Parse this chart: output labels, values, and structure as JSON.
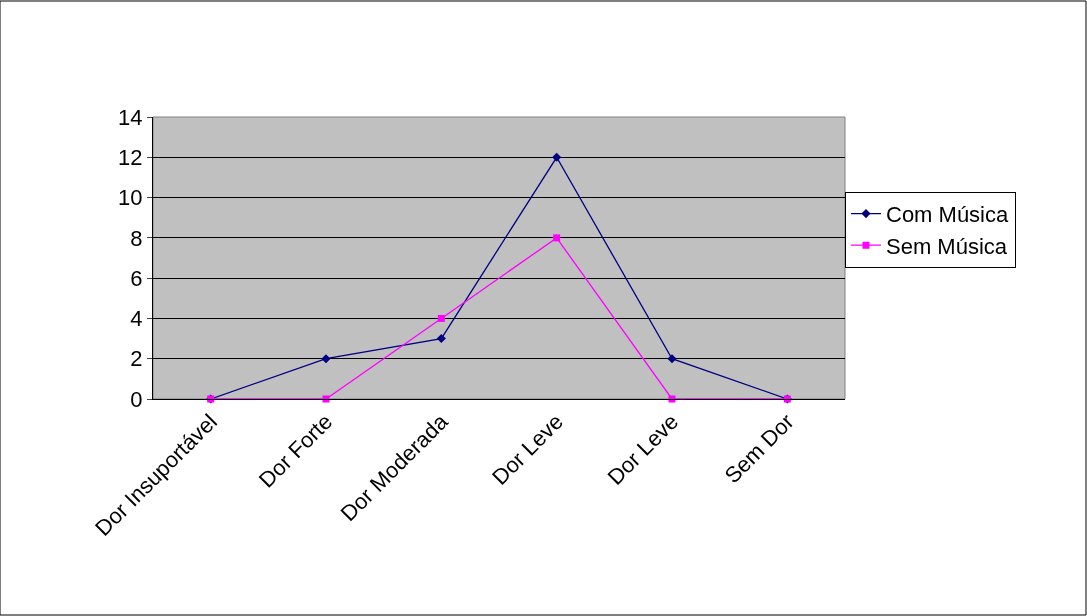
{
  "chart_data": {
    "type": "line",
    "categories": [
      "Dor Insuportável",
      "Dor Forte",
      "Dor Moderada",
      "Dor Leve",
      "Dor Leve",
      "Sem Dor"
    ],
    "series": [
      {
        "name": "Com Música",
        "color": "#000080",
        "marker": "diamond",
        "values": [
          0,
          2,
          3,
          12,
          2,
          0
        ]
      },
      {
        "name": "Sem Música",
        "color": "#ff00ff",
        "marker": "square",
        "values": [
          0,
          0,
          4,
          8,
          0,
          0
        ]
      }
    ],
    "ylim": [
      0,
      14
    ],
    "yticks": [
      0,
      2,
      4,
      6,
      8,
      10,
      12,
      14
    ],
    "grid": "y",
    "legend": "right",
    "line_style": "solid"
  }
}
